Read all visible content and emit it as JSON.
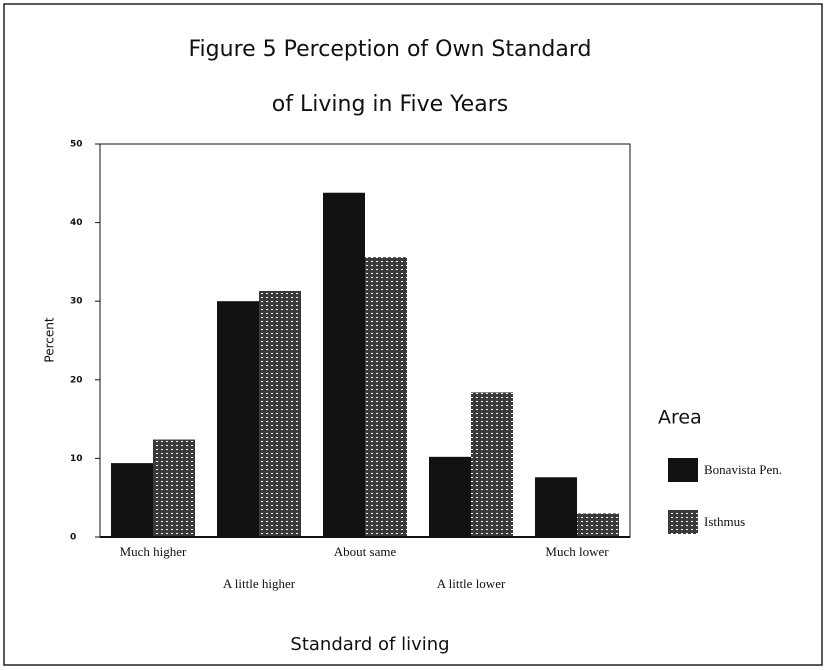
{
  "chart_data": {
    "type": "bar",
    "title_lines": [
      "Figure 5 Perception of Own Standard",
      "of Living in Five Years"
    ],
    "x_label": "Standard of living",
    "y_label": "Percent",
    "categories": [
      "Much higher",
      "A little higher",
      "About same",
      "A little lower",
      "Much lower"
    ],
    "series": [
      {
        "name": "Bonavista Pen.",
        "color": "#111111",
        "values": [
          9.4,
          30.0,
          43.8,
          10.2,
          7.6
        ]
      },
      {
        "name": "Isthmus",
        "color": "#3a3a3a",
        "values": [
          12.4,
          31.3,
          35.6,
          18.4,
          3.0
        ]
      }
    ],
    "legend_title": "Area",
    "ylim": [
      0,
      50
    ],
    "yticks": [
      0,
      10,
      20,
      30,
      40,
      50
    ]
  }
}
